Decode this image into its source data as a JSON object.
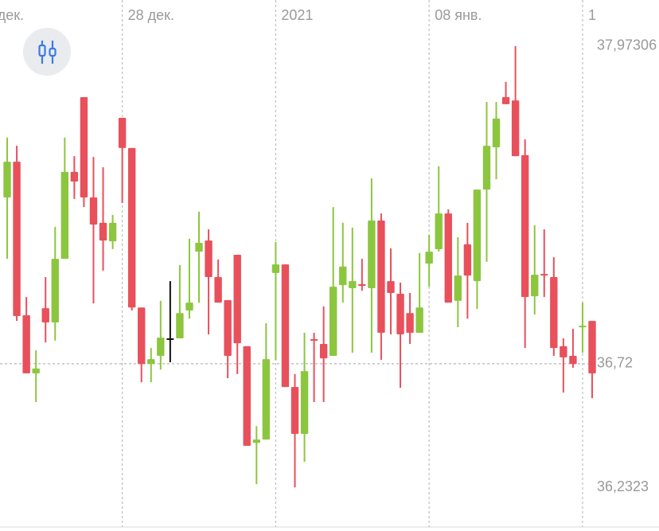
{
  "chart_data": {
    "type": "candlestick",
    "categories": [
      null,
      null,
      null,
      null,
      null,
      null,
      null,
      null,
      null,
      null,
      null,
      null,
      null,
      null,
      null,
      null,
      null,
      null,
      null,
      null,
      null,
      null,
      null,
      null,
      null,
      null,
      null,
      null,
      null,
      null,
      null,
      null,
      null,
      null,
      null,
      null,
      null,
      null,
      null,
      null,
      null,
      null,
      null,
      null,
      null,
      null,
      null,
      null,
      null,
      null,
      null,
      null,
      null,
      null,
      null,
      null,
      null,
      null,
      null,
      null,
      null,
      null
    ],
    "open": [
      37.376,
      37.517,
      36.911,
      36.682,
      36.939,
      36.883,
      37.134,
      37.477,
      37.772,
      37.376,
      37.276,
      37.203,
      37.69,
      37.571,
      36.942,
      36.719,
      36.751,
      36.82,
      36.82,
      36.93,
      37.162,
      37.206,
      37.062,
      36.971,
      37.15,
      36.789,
      36.408,
      36.421,
      37.078,
      37.112,
      36.628,
      36.443,
      36.817,
      36.798,
      36.751,
      37.03,
      37.018,
      37.034,
      37.018,
      37.285,
      37.046,
      36.996,
      36.92,
      36.842,
      37.115,
      37.172,
      37.313,
      36.968,
      37.191,
      37.046,
      37.407,
      37.574,
      37.772,
      37.759,
      37.543,
      36.986,
      37.074,
      37.062,
      36.789,
      36.751,
      36.867,
      36.889
    ],
    "high": [
      37.612,
      37.58,
      36.983,
      36.773,
      37.062,
      37.26,
      37.612,
      37.539,
      37.772,
      37.536,
      37.495,
      37.307,
      37.69,
      37.571,
      36.942,
      36.782,
      36.968,
      37.046,
      37.109,
      37.213,
      37.32,
      37.25,
      37.131,
      36.971,
      37.15,
      36.789,
      36.474,
      36.88,
      37.2,
      37.112,
      36.679,
      36.842,
      36.842,
      36.946,
      37.338,
      37.276,
      37.257,
      37.134,
      37.451,
      37.313,
      37.175,
      37.04,
      36.999,
      37.156,
      37.228,
      37.499,
      37.329,
      37.219,
      37.276,
      37.407,
      37.753,
      37.753,
      37.832,
      37.973,
      37.605,
      37.266,
      37.25,
      37.14,
      36.82,
      36.858,
      36.961,
      36.889
    ],
    "low": [
      37.134,
      36.889,
      36.682,
      36.569,
      36.804,
      36.811,
      37.134,
      37.37,
      37.338,
      36.958,
      37.087,
      37.172,
      37.354,
      36.93,
      36.647,
      36.647,
      36.697,
      36.726,
      36.82,
      36.898,
      36.961,
      36.836,
      36.961,
      36.663,
      36.679,
      36.396,
      36.245,
      36.421,
      36.735,
      36.628,
      36.232,
      36.333,
      36.569,
      36.569,
      36.751,
      36.961,
      36.763,
      37.008,
      36.763,
      36.735,
      36.836,
      36.625,
      36.798,
      36.842,
      37.024,
      37.162,
      36.961,
      36.864,
      36.898,
      36.936,
      37.122,
      37.448,
      37.744,
      37.539,
      36.782,
      36.914,
      36.983,
      36.751,
      36.606,
      36.704,
      36.763,
      36.584
    ],
    "close": [
      37.517,
      36.908,
      36.682,
      36.701,
      36.883,
      37.134,
      37.477,
      37.439,
      37.376,
      37.269,
      37.206,
      37.276,
      37.571,
      36.942,
      36.719,
      36.738,
      36.823,
      36.82,
      36.92,
      36.961,
      37.197,
      37.062,
      36.961,
      36.751,
      36.801,
      36.396,
      36.421,
      36.738,
      37.112,
      36.628,
      36.443,
      36.691,
      36.811,
      36.741,
      37.024,
      37.103,
      37.046,
      37.027,
      37.285,
      36.842,
      36.999,
      36.836,
      36.842,
      36.942,
      37.162,
      37.313,
      36.961,
      37.068,
      37.068,
      37.407,
      37.58,
      37.687,
      37.744,
      37.539,
      36.983,
      37.071,
      37.068,
      36.782,
      36.745,
      36.719,
      36.87,
      36.682
    ],
    "up_color": "#8cc63f",
    "down_color": "#e8505b",
    "flat_color": "#111111",
    "xlim": [
      -0.75,
      67.97
    ],
    "xticks": [
      {
        "value": -1.6,
        "label": "дек."
      },
      {
        "value": 12,
        "label": "28 дек."
      },
      {
        "value": 28,
        "label": "2021"
      },
      {
        "value": 44,
        "label": "08 янв."
      },
      {
        "value": 60,
        "label": "1"
      }
    ],
    "ylim": [
      36.06,
      38.155
    ],
    "yticks": [
      {
        "value": 37.97306,
        "label": "37,97306"
      },
      {
        "value": 36.2323,
        "label": "36,2323"
      }
    ],
    "current_price": {
      "value": 36.72,
      "label": "36,72"
    },
    "grid": true
  }
}
